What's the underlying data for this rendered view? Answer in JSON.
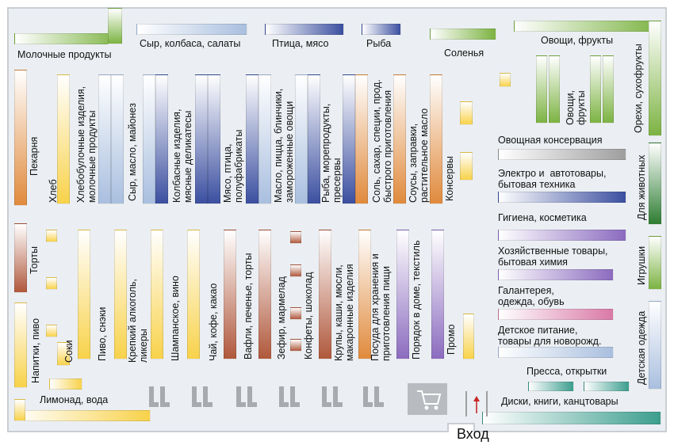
{
  "plan": {
    "entrance": "Вход",
    "colors": {
      "dairy_green": "#7cb342",
      "blue_light": "#a9bfdf",
      "blue_dark": "#3b4fa0",
      "orange": "#e08a3c",
      "yellow": "#f8d24a",
      "brown": "#b0583c",
      "purple": "#8b6bbf",
      "grey": "#9e9e9e",
      "pink": "#d979a6",
      "teal": "#3c9e8e"
    },
    "departments": [
      {
        "id": "dairy",
        "label": "Молочные продукты"
      },
      {
        "id": "cheese-sausage-salads",
        "label": "Сыр, колбаса, салаты"
      },
      {
        "id": "poultry-meat",
        "label": "Птица, мясо"
      },
      {
        "id": "fish",
        "label": "Рыба"
      },
      {
        "id": "pickles",
        "label": "Соленья"
      },
      {
        "id": "vegetables-fruits-top",
        "label": "Овощи, фрукты"
      },
      {
        "id": "nuts-dried-fruits",
        "label": "Орехи, сухофрукты"
      },
      {
        "id": "vegetables-fruits-island",
        "label": "Овощи,\nфрукты"
      },
      {
        "id": "bakery",
        "label": "Пекарня"
      },
      {
        "id": "bread",
        "label": "Хлеб"
      },
      {
        "id": "bakery-products",
        "label": "Хлебобулочные изделия,\nмолочные продукты"
      },
      {
        "id": "cheese-butter-mayo",
        "label": "Сыр, масло, майонез"
      },
      {
        "id": "sausage-deli",
        "label": "Колбасные изделия,\nмясные деликатесы"
      },
      {
        "id": "meat-semi",
        "label": "Мясо, птица,\nполуфабрикаты"
      },
      {
        "id": "butter-pizza-frozen",
        "label": "Масло, пицца, блинчики,\nзамороженные овощи"
      },
      {
        "id": "fish-seafood",
        "label": "Рыба, морепродукты,\nпресервы"
      },
      {
        "id": "salt-sugar-spices",
        "label": "Соль, сахар, специи, прод.\nбыстрого приготовления"
      },
      {
        "id": "sauces-oil",
        "label": "Соусы, заправки,\nрастительное масло"
      },
      {
        "id": "canned",
        "label": "Консервы"
      },
      {
        "id": "veg-canned",
        "label": "Овощная консервация"
      },
      {
        "id": "electro-auto",
        "label": "Электро и  автотовары,\nбытовая техника"
      },
      {
        "id": "pets",
        "label": "Для животных"
      },
      {
        "id": "hygiene",
        "label": "Гигиена, косметика"
      },
      {
        "id": "household",
        "label": "Хозяйственные товары,\nбытовая химия"
      },
      {
        "id": "toys",
        "label": "Игрушки"
      },
      {
        "id": "haberdashery",
        "label": "Галантерея,\nодежда, обувь"
      },
      {
        "id": "baby-food",
        "label": "Детское питание,\nтовары для новорожд."
      },
      {
        "id": "kids-clothes",
        "label": "Детская одежда"
      },
      {
        "id": "press",
        "label": "Пресса, открытки"
      },
      {
        "id": "discs-books",
        "label": "Диски, книги, канцтовары"
      },
      {
        "id": "cakes",
        "label": "Торты"
      },
      {
        "id": "drinks-beer",
        "label": "Напитки, пиво"
      },
      {
        "id": "juices",
        "label": "Соки"
      },
      {
        "id": "lemonade",
        "label": "Лимонад, вода"
      },
      {
        "id": "beer-snacks",
        "label": "Пиво, снэки"
      },
      {
        "id": "strong-alcohol",
        "label": "Крепкий алкоголь,\nликеры"
      },
      {
        "id": "champagne-wine",
        "label": "Шампанское, вино"
      },
      {
        "id": "tea-coffee",
        "label": "Чай, кофе, какао"
      },
      {
        "id": "waffles-cookies",
        "label": "Вафли, печенье, торты"
      },
      {
        "id": "marshmallow",
        "label": "Зефир, мармелад"
      },
      {
        "id": "candy-chocolate",
        "label": "Конфеты, шоколад"
      },
      {
        "id": "cereals-pasta",
        "label": "Крупы, каши, мюсли,\nмакаронные изделия"
      },
      {
        "id": "storage-dishes",
        "label": "Посуда для хранения и\nприготовления пищи"
      },
      {
        "id": "home-textile",
        "label": "Порядок в доме, текстиль"
      },
      {
        "id": "promo",
        "label": "Промо"
      }
    ]
  }
}
